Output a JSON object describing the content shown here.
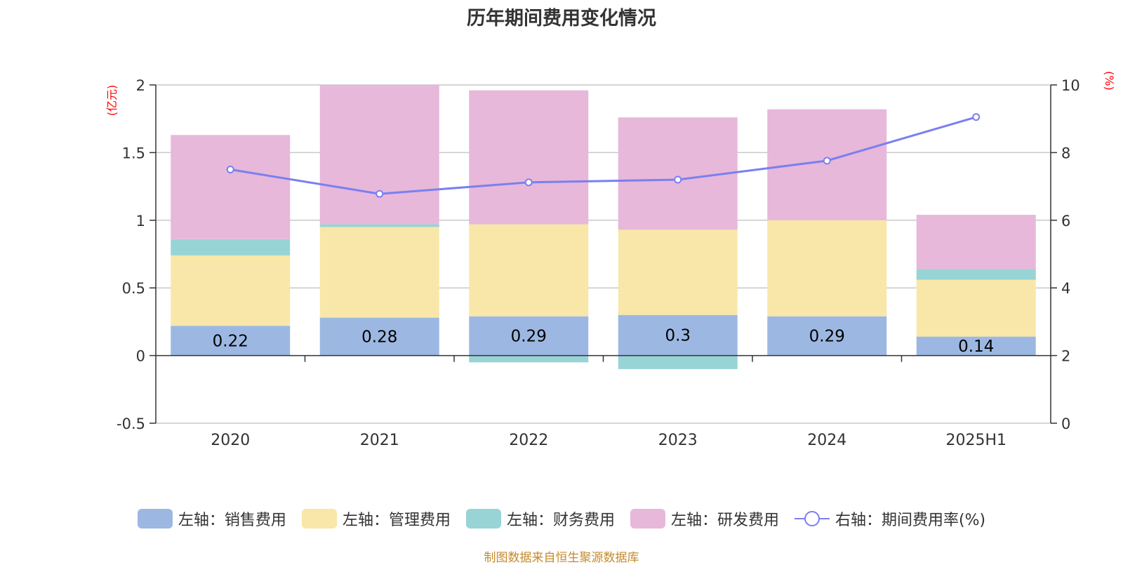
{
  "chart_data": {
    "type": "bar",
    "title": "历年期间费用变化情况",
    "left_unit": "(亿元)",
    "right_unit": "(%)",
    "categories": [
      "2020",
      "2021",
      "2022",
      "2023",
      "2024",
      "2025H1"
    ],
    "left_axis": {
      "min": -0.5,
      "max": 2,
      "ticks": [
        -0.5,
        0,
        0.5,
        1,
        1.5,
        2
      ],
      "tick_labels": [
        "-0.5",
        "0",
        "0.5",
        "1",
        "1.5",
        "2"
      ]
    },
    "right_axis": {
      "min": 0,
      "max": 10,
      "ticks": [
        0,
        2,
        4,
        6,
        8,
        10
      ],
      "tick_labels": [
        "0",
        "2",
        "4",
        "6",
        "8",
        "10"
      ]
    },
    "grid": true,
    "legend_position": "bottom",
    "stacked": true,
    "series": [
      {
        "name": "左轴：销售费用",
        "axis": "left",
        "type": "bar",
        "color": "#9cb8e2",
        "values": [
          0.22,
          0.28,
          0.29,
          0.3,
          0.29,
          0.14
        ],
        "labels": [
          "0.22",
          "0.28",
          "0.29",
          "0.3",
          "0.29",
          "0.14"
        ]
      },
      {
        "name": "左轴：管理费用",
        "axis": "left",
        "type": "bar",
        "color": "#f8e7a8",
        "values": [
          0.52,
          0.67,
          0.68,
          0.63,
          0.71,
          0.42
        ]
      },
      {
        "name": "左轴：财务费用",
        "axis": "left",
        "type": "bar",
        "color": "#98d4d6",
        "values": [
          0.12,
          0.02,
          -0.05,
          -0.1,
          0.0,
          0.08
        ]
      },
      {
        "name": "左轴：研发费用",
        "axis": "left",
        "type": "bar",
        "color": "#e7b8da",
        "values": [
          0.77,
          1.03,
          0.99,
          0.83,
          0.82,
          0.4
        ]
      },
      {
        "name": "右轴：期间费用率(%)",
        "axis": "right",
        "type": "line",
        "color": "#7b7ff0",
        "values": [
          7.5,
          6.78,
          7.12,
          7.2,
          7.76,
          9.05
        ]
      }
    ]
  },
  "source_note": "制图数据来自恒生聚源数据库"
}
